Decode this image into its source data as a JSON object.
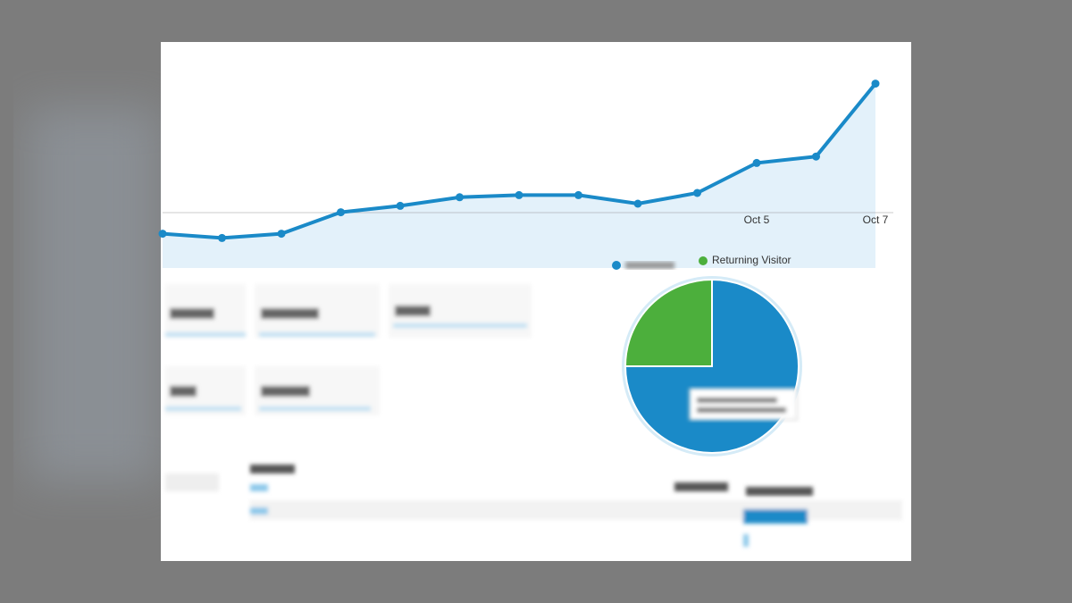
{
  "chart_data": [
    {
      "type": "line",
      "categories": [
        null,
        null,
        null,
        null,
        null,
        null,
        null,
        null,
        null,
        null,
        "Oct 5",
        null,
        "Oct 7"
      ],
      "values": [
        16,
        14,
        16,
        26,
        29,
        33,
        34,
        34,
        30,
        35,
        49,
        52,
        86
      ],
      "ylim": [
        0,
        100
      ],
      "color": "#1a8ac8"
    },
    {
      "type": "pie",
      "categories": [
        null,
        "Returning Visitor"
      ],
      "values": [
        75,
        25
      ],
      "colors": [
        "#1a8ac8",
        "#4caf3c"
      ]
    }
  ]
}
